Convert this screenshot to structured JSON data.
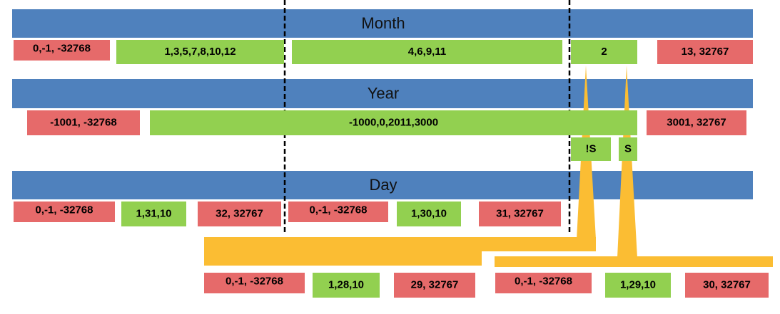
{
  "rows": [
    {
      "title": "Month",
      "cells": [
        "0,-1, -32768",
        "1,3,5,7,8,10,12",
        "4,6,9,11",
        "2",
        "13, 32767"
      ]
    },
    {
      "title": "Year",
      "cells": [
        "-1001, -32768",
        "-1000,0,2011,3000",
        "3001, 32767"
      ]
    },
    {
      "title": "Day",
      "cells": [
        "0,-1, -32768",
        "1,31,10",
        "32, 32767",
        "0,-1, -32768",
        "1,30,10",
        "31, 32767"
      ]
    }
  ],
  "leap_labels": [
    "!S",
    "S"
  ],
  "february_cells": [
    "0,-1, -32768",
    "1,28,10",
    "29, 32767",
    "0,-1, -32768",
    "1,29,10",
    "30, 32767"
  ]
}
